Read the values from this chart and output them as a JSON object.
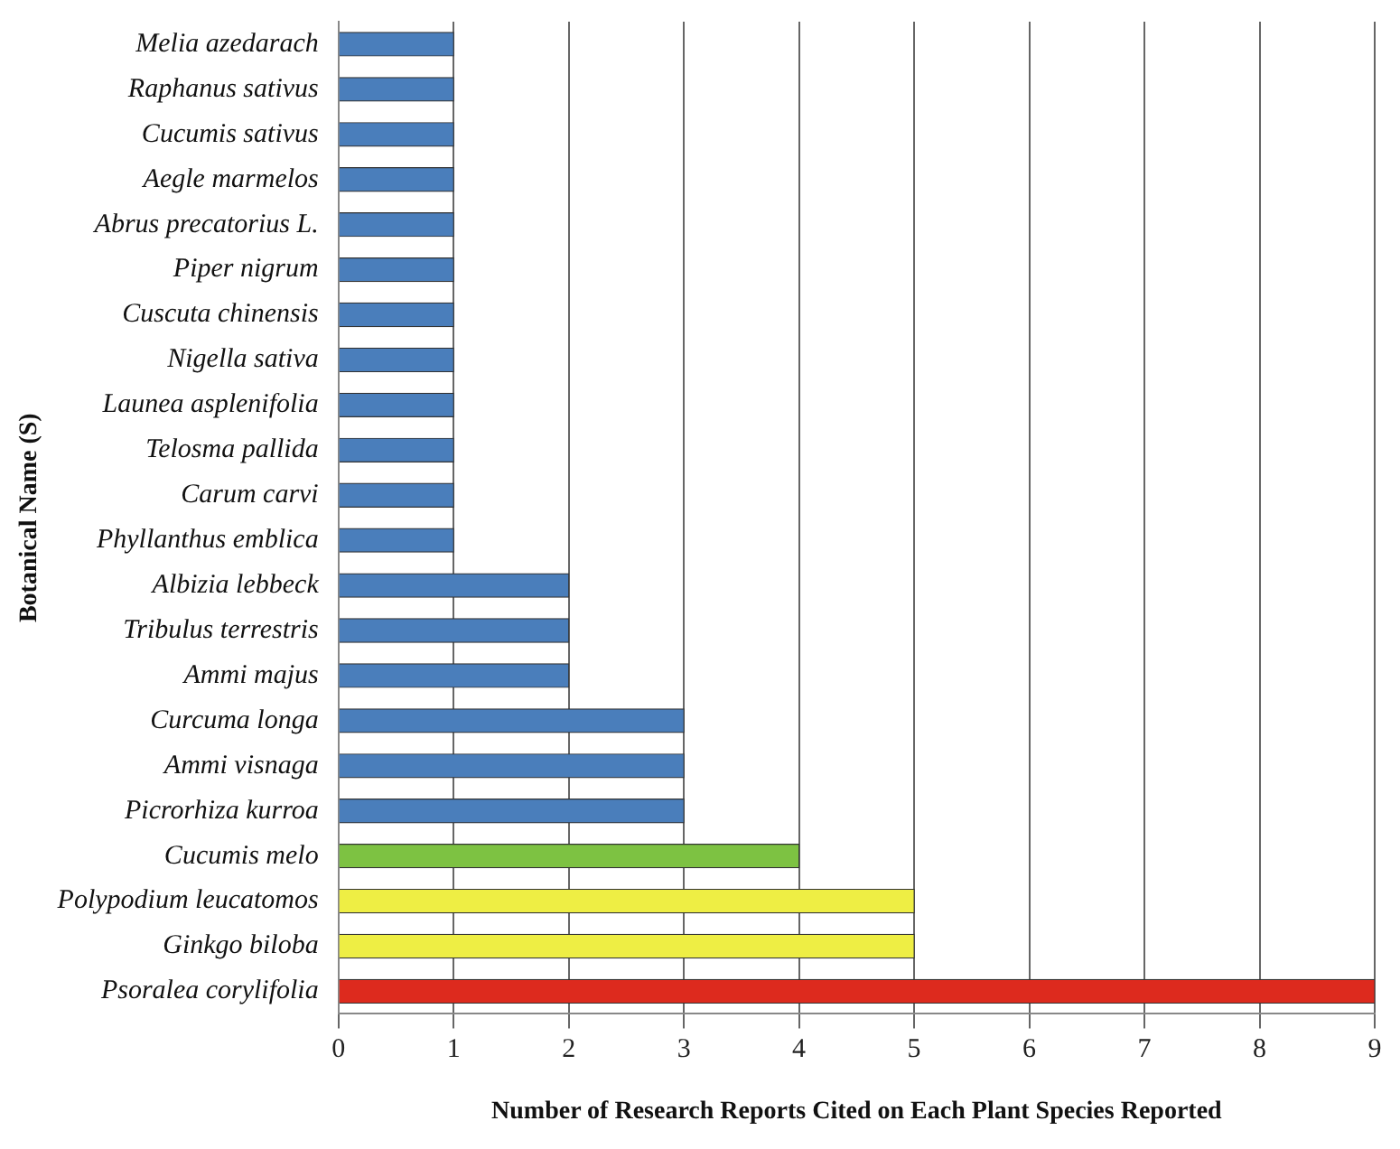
{
  "chart_data": {
    "type": "bar",
    "orientation": "horizontal",
    "xlabel": "Number of Research Reports Cited on Each Plant Species Reported",
    "ylabel": "Botanical Name (S)",
    "categories": [
      "Melia azedarach",
      "Raphanus sativus",
      "Cucumis sativus",
      "Aegle marmelos",
      "Abrus precatorius L.",
      "Piper nigrum",
      "Cuscuta chinensis",
      "Nigella sativa",
      "Launea asplenifolia",
      "Telosma pallida",
      "Carum carvi",
      "Phyllanthus emblica",
      "Albizia lebbeck",
      "Tribulus terrestris",
      "Ammi majus",
      "Curcuma longa",
      "Ammi visnaga",
      "Picrorhiza kurroa",
      "Cucumis melo",
      "Polypodium leucatomos",
      "Ginkgo biloba",
      "Psoralea corylifolia"
    ],
    "values": [
      1,
      1,
      1,
      1,
      1,
      1,
      1,
      1,
      1,
      1,
      1,
      1,
      2,
      2,
      2,
      3,
      3,
      3,
      4,
      5,
      5,
      9
    ],
    "colors": [
      "#4a7ebb",
      "#4a7ebb",
      "#4a7ebb",
      "#4a7ebb",
      "#4a7ebb",
      "#4a7ebb",
      "#4a7ebb",
      "#4a7ebb",
      "#4a7ebb",
      "#4a7ebb",
      "#4a7ebb",
      "#4a7ebb",
      "#4a7ebb",
      "#4a7ebb",
      "#4a7ebb",
      "#4a7ebb",
      "#4a7ebb",
      "#4a7ebb",
      "#7dc242",
      "#eeee44",
      "#eeee44",
      "#dd2a1e"
    ],
    "xlim": [
      0,
      9
    ],
    "xticks": [
      0,
      1,
      2,
      3,
      4,
      5,
      6,
      7,
      8,
      9
    ],
    "grid": "x",
    "legend": false
  }
}
